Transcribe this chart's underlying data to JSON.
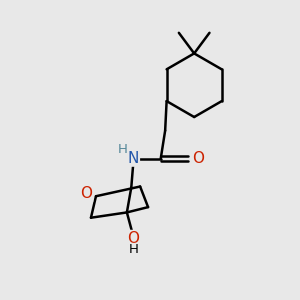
{
  "background_color": "#e8e8e8",
  "bond_color": "#000000",
  "bond_width": 1.8,
  "atom_colors": {
    "N": "#2255aa",
    "O_ring": "#cc2200",
    "O_carbonyl": "#cc2200",
    "O_hydroxyl": "#cc2200",
    "H_nh": "#558899"
  },
  "font_size_atoms": 11,
  "font_size_H": 9.5,
  "figsize": [
    3.0,
    3.0
  ],
  "dpi": 100,
  "xlim": [
    0,
    10
  ],
  "ylim": [
    0,
    10
  ]
}
